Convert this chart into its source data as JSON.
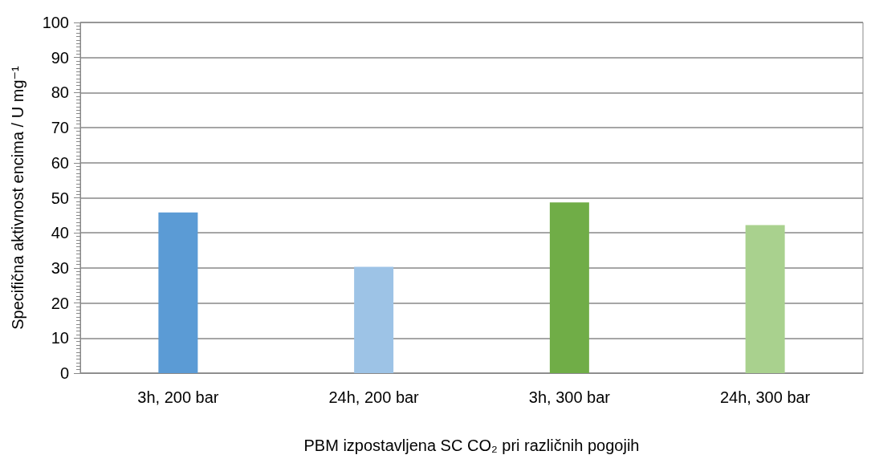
{
  "chart_data": {
    "type": "bar",
    "xlabel": "PBM izpostavljena SC CO₂ pri različnih pogojih",
    "ylabel": "Specifična aktivnost encima / U mg⁻¹",
    "categories": [
      "3h, 200 bar",
      "24h, 200 bar",
      "3h, 300 bar",
      "24h, 300 bar"
    ],
    "values": [
      45.8,
      30.3,
      48.7,
      42.2
    ],
    "colors": [
      "#5b9bd5",
      "#9dc3e6",
      "#70ad47",
      "#a9d18e"
    ],
    "ylim": [
      0,
      100
    ],
    "yticks": [
      0,
      10,
      20,
      30,
      40,
      50,
      60,
      70,
      80,
      90,
      100
    ],
    "grid": "y"
  }
}
